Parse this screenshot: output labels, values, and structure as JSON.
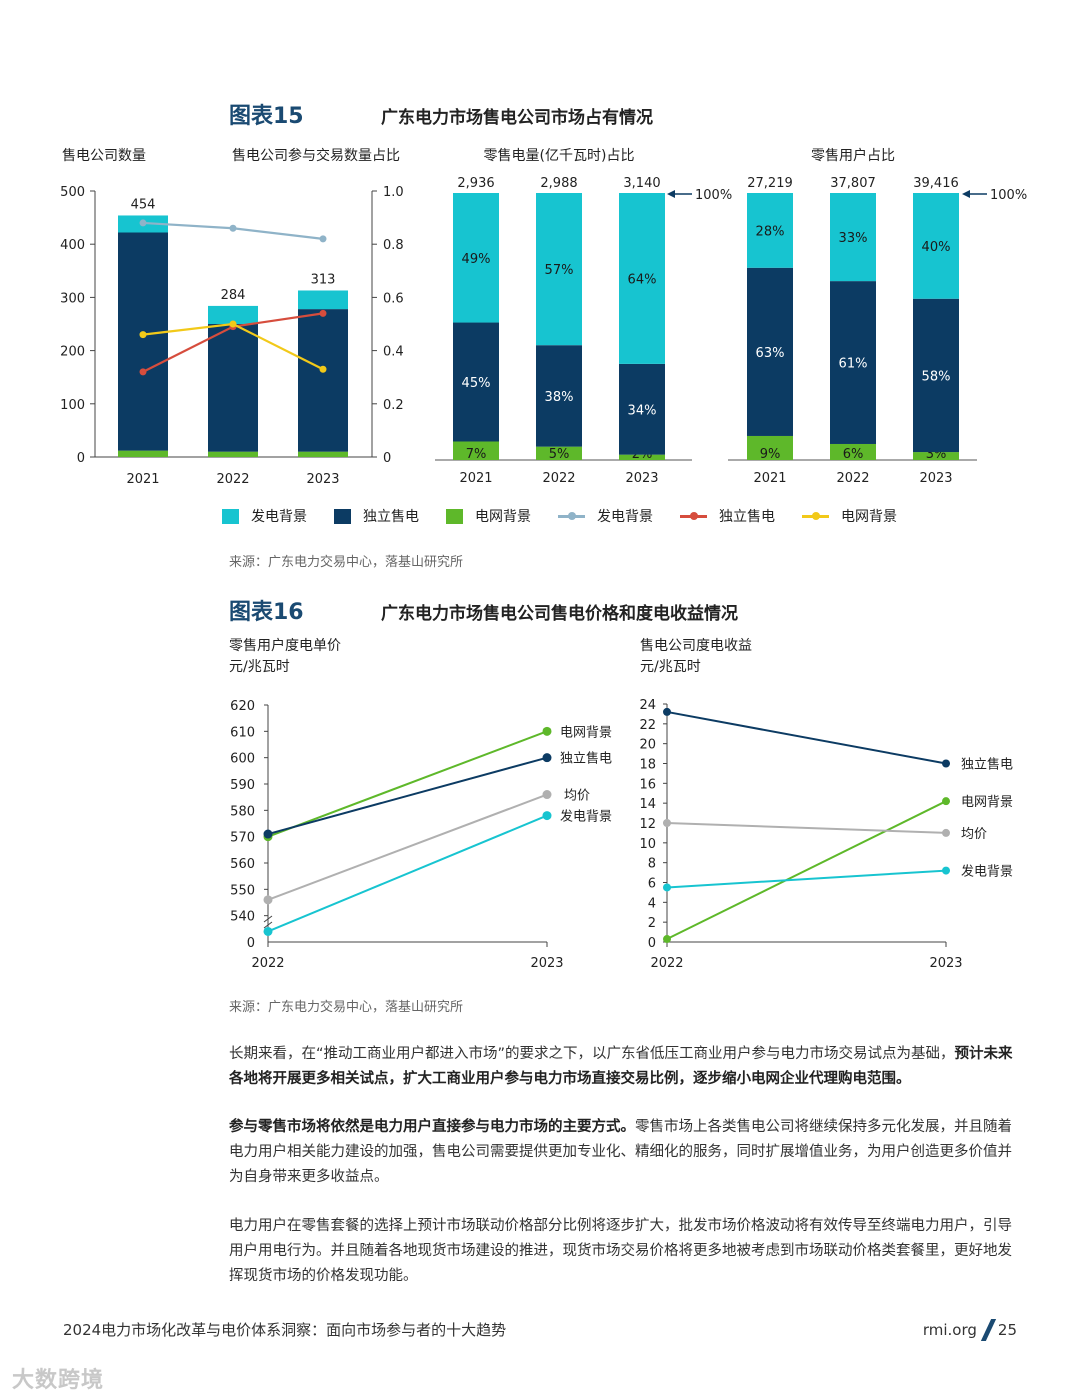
{
  "fig15": {
    "number": "图表15",
    "title": "广东电力市场售电公司市场占有情况",
    "source": "来源：广东电力交易中心，落基山研究所"
  },
  "fig16": {
    "number": "图表16",
    "title": "广东电力市场售电公司售电价格和度电收益情况",
    "source": "来源：广东电力交易中心，落基山研究所"
  },
  "legend": {
    "bar_gen": "发电背景",
    "bar_ind": "独立售电",
    "bar_grid": "电网背景",
    "line_gen": "发电背景",
    "line_ind": "独立售电",
    "line_grid": "电网背景"
  },
  "colors": {
    "gen": "#17c4d0",
    "ind": "#0c3b63",
    "grid": "#5eb82a",
    "line_gen": "#8fb3c8",
    "line_ind": "#d64d3d",
    "line_grid": "#f2c919",
    "avg": "#b0b0b0"
  },
  "chart_data": [
    {
      "type": "bar",
      "title": "售电公司数量",
      "y2label": "售电公司参与交易数量占比",
      "categories": [
        "2021",
        "2022",
        "2023"
      ],
      "ylim": [
        0,
        500
      ],
      "yticks": [
        "0",
        "100",
        "200",
        "300",
        "400",
        "500"
      ],
      "y2lim": [
        0,
        1.0
      ],
      "y2ticks": [
        "0",
        "0.2",
        "0.4",
        "0.6",
        "0.8",
        "1.0"
      ],
      "totals": [
        "454",
        "284",
        "313"
      ],
      "series": [
        {
          "name": "电网背景",
          "values": [
            12,
            10,
            10
          ]
        },
        {
          "name": "独立售电",
          "values": [
            410,
            240,
            268
          ]
        },
        {
          "name": "发电背景",
          "values": [
            32,
            34,
            35
          ]
        }
      ],
      "lines": [
        {
          "name": "发电背景",
          "values": [
            0.88,
            0.86,
            0.82
          ]
        },
        {
          "name": "独立售电",
          "values": [
            0.32,
            0.49,
            0.54
          ]
        },
        {
          "name": "电网背景",
          "values": [
            0.46,
            0.5,
            0.33
          ]
        }
      ]
    },
    {
      "type": "bar",
      "title": "零售电量(亿千瓦时)占比",
      "categories": [
        "2021",
        "2022",
        "2023"
      ],
      "totals": [
        "2,936",
        "2,988",
        "3,140"
      ],
      "marker": "100%",
      "series": [
        {
          "name": "电网背景",
          "values": [
            7,
            5,
            2
          ],
          "labels": [
            "7%",
            "5%",
            "2%"
          ]
        },
        {
          "name": "独立售电",
          "values": [
            45,
            38,
            34
          ],
          "labels": [
            "45%",
            "38%",
            "34%"
          ]
        },
        {
          "name": "发电背景",
          "values": [
            49,
            57,
            64
          ],
          "labels": [
            "49%",
            "57%",
            "64%"
          ]
        }
      ]
    },
    {
      "type": "bar",
      "title": "零售用户占比",
      "categories": [
        "2021",
        "2022",
        "2023"
      ],
      "totals": [
        "27,219",
        "37,807",
        "39,416"
      ],
      "marker": "100%",
      "series": [
        {
          "name": "电网背景",
          "values": [
            9,
            6,
            3
          ],
          "labels": [
            "9%",
            "6%",
            "3%"
          ]
        },
        {
          "name": "独立售电",
          "values": [
            63,
            61,
            58
          ],
          "labels": [
            "63%",
            "61%",
            "58%"
          ]
        },
        {
          "name": "发电背景",
          "values": [
            28,
            33,
            40
          ],
          "labels": [
            "28%",
            "33%",
            "40%"
          ]
        }
      ]
    },
    {
      "type": "line",
      "title": "零售用户度电单价",
      "unit": "元/兆瓦时",
      "categories": [
        "2022",
        "2023"
      ],
      "ylim": [
        530,
        620
      ],
      "yticks": [
        "540",
        "550",
        "560",
        "570",
        "580",
        "590",
        "600",
        "610",
        "620"
      ],
      "ybase": "0",
      "series": [
        {
          "name": "电网背景",
          "values": [
            570,
            610
          ]
        },
        {
          "name": "独立售电",
          "values": [
            571,
            600
          ]
        },
        {
          "name": "均价",
          "values": [
            546,
            586
          ]
        },
        {
          "name": "发电背景",
          "values": [
            534,
            578
          ]
        }
      ]
    },
    {
      "type": "line",
      "title": "售电公司度电收益",
      "unit": "元/兆瓦时",
      "categories": [
        "2022",
        "2023"
      ],
      "ylim": [
        0,
        24
      ],
      "yticks": [
        "0",
        "2",
        "4",
        "6",
        "8",
        "10",
        "12",
        "14",
        "16",
        "18",
        "20",
        "22",
        "24"
      ],
      "series": [
        {
          "name": "独立售电",
          "values": [
            23.2,
            18.0
          ]
        },
        {
          "name": "电网背景",
          "values": [
            0.3,
            14.2
          ]
        },
        {
          "name": "均价",
          "values": [
            12.0,
            11.0
          ]
        },
        {
          "name": "发电背景",
          "values": [
            5.5,
            7.2
          ]
        }
      ]
    }
  ],
  "para1_plain": "长期来看，在“推动工商业用户都进入市场”的要求之下，以广东省低压工商业用户参与电力市场交易试点为基础，",
  "para1_bold": "预计未来各地将开展更多相关试点，扩大工商业用户参与电力市场直接交易比例，逐步缩小电网企业代理购电范围。",
  "para2_bold": "参与零售市场将依然是电力用户直接参与电力市场的主要方式。",
  "para2_plain": "零售市场上各类售电公司将继续保持多元化发展，并且随着电力用户相关能力建设的加强，售电公司需要提供更加专业化、精细化的服务，同时扩展增值业务，为用户创造更多价值并为自身带来更多收益点。",
  "para3": "电力用户在零售套餐的选择上预计市场联动价格部分比例将逐步扩大，批发市场价格波动将有效传导至终端电力用户，引导用户用电行为。并且随着各地现货市场建设的推进，现货市场交易价格将更多地被考虑到市场联动价格类套餐里，更好地发挥现货市场的价格发现功能。",
  "footer": {
    "title": "2024电力市场化改革与电价体系洞察：面向市场参与者的十大趋势",
    "site": "rmi.org",
    "page": "25"
  },
  "watermark": "大数跨境"
}
